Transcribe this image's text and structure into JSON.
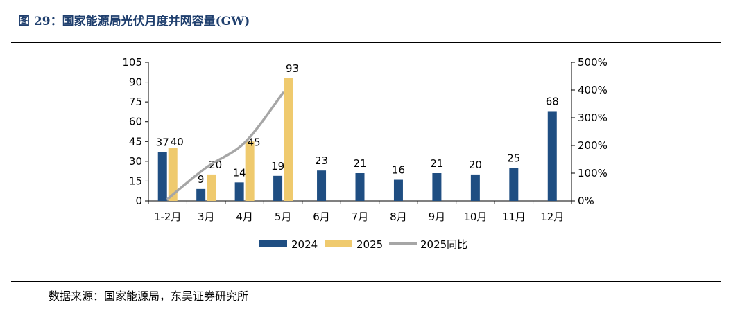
{
  "figure": {
    "title": "图 29：国家能源局光伏月度并网容量(GW)",
    "source": "数据来源：国家能源局，东吴证券研究所"
  },
  "colors": {
    "s2024": "#1f4e82",
    "s2025": "#efca6e",
    "yoy": "#a6a6a6"
  },
  "chart_data": {
    "type": "bar",
    "categories": [
      "1-2月",
      "3月",
      "4月",
      "5月",
      "6月",
      "7月",
      "8月",
      "9月",
      "10月",
      "11月",
      "12月"
    ],
    "series": [
      {
        "name": "2024",
        "type": "bar",
        "axis": "left",
        "values": [
          37,
          9,
          14,
          19,
          23,
          21,
          16,
          21,
          20,
          25,
          68
        ],
        "labels": [
          "37",
          "9",
          "14",
          "19",
          "23",
          "21",
          "16",
          "21",
          "20",
          "25",
          "68"
        ]
      },
      {
        "name": "2025",
        "type": "bar",
        "axis": "left",
        "values": [
          40,
          20,
          45,
          93,
          null,
          null,
          null,
          null,
          null,
          null,
          null
        ],
        "labels": [
          "40",
          "20",
          "45",
          "93",
          "",
          "",
          "",
          "",
          "",
          "",
          ""
        ]
      },
      {
        "name": "2025同比",
        "type": "line",
        "axis": "right",
        "values": [
          7,
          120,
          210,
          390,
          null,
          null,
          null,
          null,
          null,
          null,
          null
        ]
      }
    ],
    "left_axis": {
      "ylim": [
        0,
        105
      ],
      "ticks": [
        "0",
        "15",
        "30",
        "45",
        "60",
        "75",
        "90",
        "105"
      ]
    },
    "right_axis": {
      "ylim": [
        0,
        500
      ],
      "ticks": [
        "0%",
        "100%",
        "200%",
        "300%",
        "400%",
        "500%"
      ]
    },
    "legend": [
      "2024",
      "2025",
      "2025同比"
    ],
    "legend_position": "bottom",
    "grid": false
  }
}
